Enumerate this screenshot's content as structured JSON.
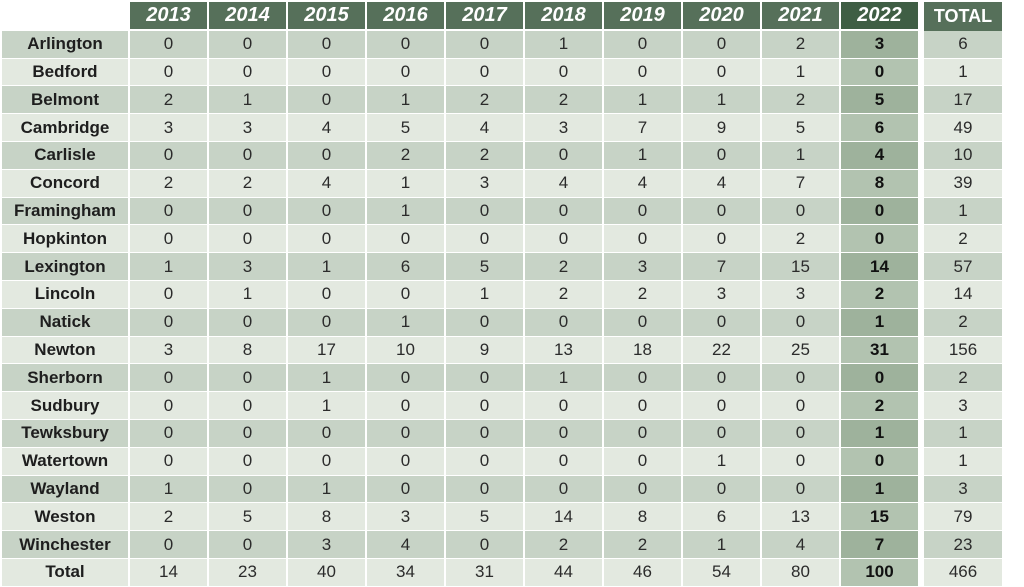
{
  "headers": {
    "years": [
      "2013",
      "2014",
      "2015",
      "2016",
      "2017",
      "2018",
      "2019",
      "2020",
      "2021",
      "2022"
    ],
    "total": "TOTAL"
  },
  "rows": [
    {
      "town": "Arlington",
      "values": [
        "0",
        "0",
        "0",
        "0",
        "0",
        "1",
        "0",
        "0",
        "2",
        "3"
      ],
      "total": "6"
    },
    {
      "town": "Bedford",
      "values": [
        "0",
        "0",
        "0",
        "0",
        "0",
        "0",
        "0",
        "0",
        "1",
        "0"
      ],
      "total": "1"
    },
    {
      "town": "Belmont",
      "values": [
        "2",
        "1",
        "0",
        "1",
        "2",
        "2",
        "1",
        "1",
        "2",
        "5"
      ],
      "total": "17"
    },
    {
      "town": "Cambridge",
      "values": [
        "3",
        "3",
        "4",
        "5",
        "4",
        "3",
        "7",
        "9",
        "5",
        "6"
      ],
      "total": "49"
    },
    {
      "town": "Carlisle",
      "values": [
        "0",
        "0",
        "0",
        "2",
        "2",
        "0",
        "1",
        "0",
        "1",
        "4"
      ],
      "total": "10"
    },
    {
      "town": "Concord",
      "values": [
        "2",
        "2",
        "4",
        "1",
        "3",
        "4",
        "4",
        "4",
        "7",
        "8"
      ],
      "total": "39"
    },
    {
      "town": "Framingham",
      "values": [
        "0",
        "0",
        "0",
        "1",
        "0",
        "0",
        "0",
        "0",
        "0",
        "0"
      ],
      "total": "1"
    },
    {
      "town": "Hopkinton",
      "values": [
        "0",
        "0",
        "0",
        "0",
        "0",
        "0",
        "0",
        "0",
        "2",
        "0"
      ],
      "total": "2"
    },
    {
      "town": "Lexington",
      "values": [
        "1",
        "3",
        "1",
        "6",
        "5",
        "2",
        "3",
        "7",
        "15",
        "14"
      ],
      "total": "57"
    },
    {
      "town": "Lincoln",
      "values": [
        "0",
        "1",
        "0",
        "0",
        "1",
        "2",
        "2",
        "3",
        "3",
        "2"
      ],
      "total": "14"
    },
    {
      "town": "Natick",
      "values": [
        "0",
        "0",
        "0",
        "1",
        "0",
        "0",
        "0",
        "0",
        "0",
        "1"
      ],
      "total": "2"
    },
    {
      "town": "Newton",
      "values": [
        "3",
        "8",
        "17",
        "10",
        "9",
        "13",
        "18",
        "22",
        "25",
        "31"
      ],
      "total": "156"
    },
    {
      "town": "Sherborn",
      "values": [
        "0",
        "0",
        "1",
        "0",
        "0",
        "1",
        "0",
        "0",
        "0",
        "0"
      ],
      "total": "2"
    },
    {
      "town": "Sudbury",
      "values": [
        "0",
        "0",
        "1",
        "0",
        "0",
        "0",
        "0",
        "0",
        "0",
        "2"
      ],
      "total": "3"
    },
    {
      "town": "Tewksbury",
      "values": [
        "0",
        "0",
        "0",
        "0",
        "0",
        "0",
        "0",
        "0",
        "0",
        "1"
      ],
      "total": "1"
    },
    {
      "town": "Watertown",
      "values": [
        "0",
        "0",
        "0",
        "0",
        "0",
        "0",
        "0",
        "1",
        "0",
        "0"
      ],
      "total": "1"
    },
    {
      "town": "Wayland",
      "values": [
        "1",
        "0",
        "1",
        "0",
        "0",
        "0",
        "0",
        "0",
        "0",
        "1"
      ],
      "total": "3"
    },
    {
      "town": "Weston",
      "values": [
        "2",
        "5",
        "8",
        "3",
        "5",
        "14",
        "8",
        "6",
        "13",
        "15"
      ],
      "total": "79"
    },
    {
      "town": "Winchester",
      "values": [
        "0",
        "0",
        "3",
        "4",
        "0",
        "2",
        "2",
        "1",
        "4",
        "7"
      ],
      "total": "23"
    },
    {
      "town": "Total",
      "values": [
        "14",
        "23",
        "40",
        "34",
        "31",
        "44",
        "46",
        "54",
        "80",
        "100"
      ],
      "total": "466"
    }
  ]
}
